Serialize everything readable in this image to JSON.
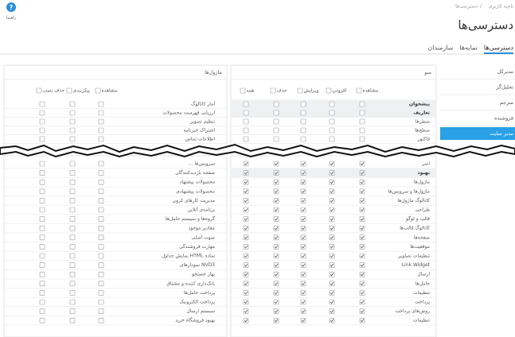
{
  "header": {
    "breadcrumb": [
      "ناحیه کاربری",
      "دسترسی‌ها"
    ],
    "breadcrumb_separator": "/",
    "title": "دسترسی‌ها",
    "help": "راهنما"
  },
  "tabs": [
    {
      "label": "دسترسی‌ها",
      "active": true
    },
    {
      "label": "نمایه‌ها",
      "active": false
    },
    {
      "label": "سازمندان",
      "active": false
    }
  ],
  "roles": [
    {
      "label": "مدیرکل",
      "active": false
    },
    {
      "label": "تحلیل‌گر",
      "active": false
    },
    {
      "label": "مترجم",
      "active": false
    },
    {
      "label": "فروشنده",
      "active": false
    },
    {
      "label": "مدیر سایت",
      "active": true
    }
  ],
  "menu_panel": {
    "title": "منو",
    "columns": [
      "مشاهده",
      "افزودن",
      "ویرایش",
      "حذف",
      "همه"
    ],
    "rows_top": [
      {
        "label": "پیشخوان",
        "checked": false,
        "highlight": true
      },
      {
        "label": "تعاریف",
        "checked": false,
        "highlight": true
      },
      {
        "label": "سطرها",
        "checked": false,
        "highlight": false
      },
      {
        "label": "سطح‌ها",
        "checked": false,
        "highlight": false
      },
      {
        "label": "فاکتور",
        "checked": false,
        "highlight": false
      }
    ],
    "rows_bottom": [
      {
        "label": "اسر",
        "checked": true,
        "highlight": false
      },
      {
        "label": "بهبود",
        "checked": true,
        "highlight": true
      },
      {
        "label": "ماژول‌ها",
        "checked": true,
        "highlight": false
      },
      {
        "label": "ماژول‌ها و سرویس‌ها",
        "checked": true,
        "highlight": false
      },
      {
        "label": "کاتالوگ ماژول‌ها",
        "checked": true,
        "highlight": false
      },
      {
        "label": "طراحی",
        "checked": true,
        "highlight": false
      },
      {
        "label": "قالب و لوگو",
        "checked": true,
        "highlight": false
      },
      {
        "label": "کاتالوگ قالب‌ها",
        "checked": true,
        "highlight": false
      },
      {
        "label": "صفحه‌ها",
        "checked": true,
        "highlight": false
      },
      {
        "label": "موقعیت‌ها",
        "checked": true,
        "highlight": false
      },
      {
        "label": "تنظیمات تصاویر",
        "checked": true,
        "highlight": false
      },
      {
        "label": "Link Widget",
        "checked": true,
        "highlight": false
      },
      {
        "label": "ارسال",
        "checked": true,
        "highlight": false
      },
      {
        "label": "حامل‌ها",
        "checked": true,
        "highlight": false
      },
      {
        "label": "تنظیمات",
        "checked": true,
        "highlight": false
      },
      {
        "label": "پرداخت",
        "checked": true,
        "highlight": false
      },
      {
        "label": "روش‌های پرداخت",
        "checked": true,
        "highlight": false
      },
      {
        "label": "تنظیمات",
        "checked": true,
        "highlight": false
      }
    ]
  },
  "modules_panel": {
    "title": "ماژول‌ها",
    "columns": [
      "مشاهده",
      "پیکربندی",
      "حذف نصب"
    ],
    "rows_top": [
      {
        "label": "آمار کاتالوگ",
        "checked": false
      },
      {
        "label": "ارزیابی فهرست محصولات",
        "checked": false
      },
      {
        "label": "تنظیم تصویر",
        "checked": false
      },
      {
        "label": "اشتراک خبرنامه",
        "checked": false
      },
      {
        "label": "اطلاعات تماس",
        "checked": false
      }
    ],
    "rows_bottom": [
      {
        "label": "... سرویس‌ها",
        "checked": false
      },
      {
        "label": "صفحه بازدیدکنندگان",
        "checked": false
      },
      {
        "label": "محصولات پیشنهاد",
        "checked": false
      },
      {
        "label": "محصولات پیشنهادی",
        "checked": false
      },
      {
        "label": "مدیریت کارهای کرون",
        "checked": false
      },
      {
        "label": "برنامه‌ی آنلاین",
        "checked": false
      },
      {
        "label": "گروه‌ها و سیستم حامل‌ها",
        "checked": false
      },
      {
        "label": "مقادیر موجود",
        "checked": false
      },
      {
        "label": "صوت اصلی",
        "checked": false
      },
      {
        "label": "مهارت فروشندگی",
        "checked": false
      },
      {
        "label": "نمایش جداول HTML ساده",
        "checked": false
      },
      {
        "label": "نمودارهای NVD3",
        "checked": false
      },
      {
        "label": "بهار جستجو",
        "checked": false
      },
      {
        "label": "بانک‌داری کننده و مشتاق",
        "checked": false
      },
      {
        "label": "پرداخت حامل‌ها",
        "checked": false
      },
      {
        "label": "پرداخت الکترونیک",
        "checked": false
      },
      {
        "label": "سیستم ارسال",
        "checked": false
      },
      {
        "label": "بهبود فروشگاه خرید",
        "checked": false
      }
    ]
  }
}
